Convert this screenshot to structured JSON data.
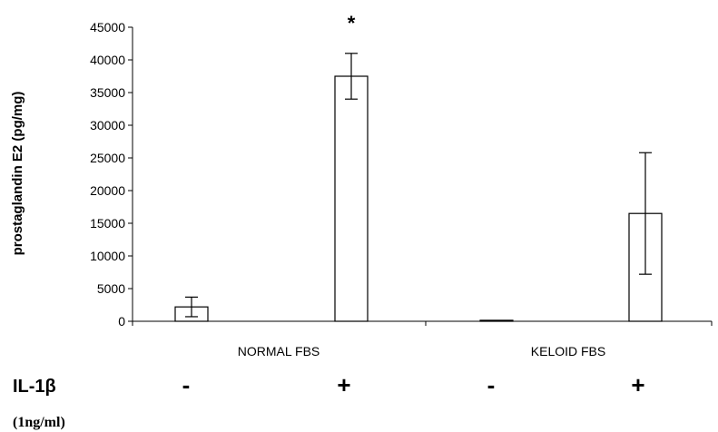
{
  "chart_data": {
    "type": "bar",
    "ylabel": "prostaglandin E2 (pg/mg)",
    "ylim": [
      0,
      45000
    ],
    "yticks": [
      0,
      5000,
      10000,
      15000,
      20000,
      25000,
      30000,
      35000,
      40000,
      45000
    ],
    "grid": false,
    "legend": "none",
    "groups": [
      "NORMAL FBS",
      "KELOID FBS"
    ],
    "treatment": {
      "label": "IL-1β",
      "concentration": "(1ng/ml)",
      "signs": [
        "-",
        "+",
        "-",
        "+"
      ]
    },
    "bars": [
      {
        "group": "NORMAL FBS",
        "treatment": "-",
        "value": 2200,
        "error": 1500,
        "annotation": ""
      },
      {
        "group": "NORMAL FBS",
        "treatment": "+",
        "value": 37500,
        "error": 3500,
        "annotation": "*"
      },
      {
        "group": "KELOID FBS",
        "treatment": "-",
        "value": 150,
        "error": 0,
        "annotation": ""
      },
      {
        "group": "KELOID FBS",
        "treatment": "+",
        "value": 16500,
        "error": 9300,
        "annotation": ""
      }
    ],
    "colors": {
      "bar_fill": "#ffffff",
      "bar_stroke": "#000000",
      "axis": "#000000"
    }
  }
}
